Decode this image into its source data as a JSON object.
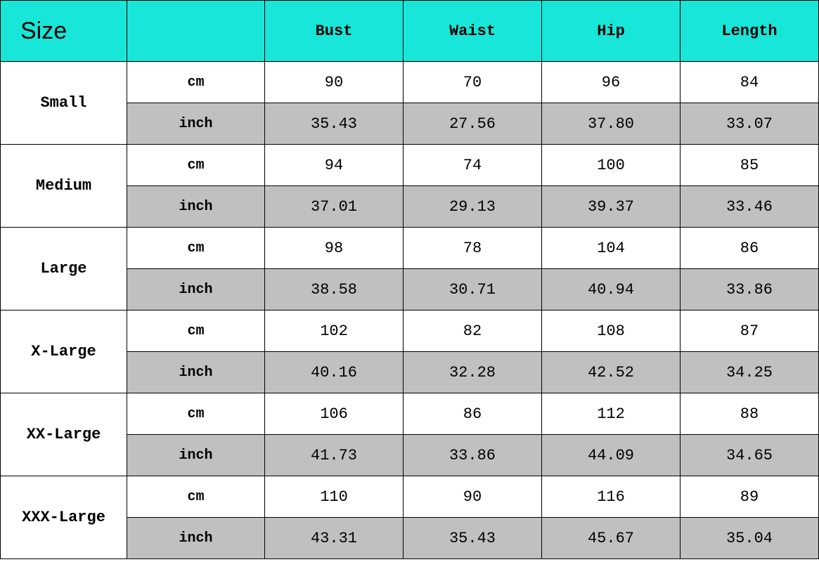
{
  "table": {
    "type": "table",
    "header_bg_color": "#18e6d9",
    "inch_row_bg_color": "#c0c0c0",
    "cm_row_bg_color": "#ffffff",
    "border_color": "#000000",
    "text_color": "#000000",
    "font_family": "Courier New",
    "size_header_label": "Size",
    "size_header_fontsize": 34,
    "column_header_fontsize": 22,
    "body_fontsize": 22,
    "unit_fontsize": 20,
    "columns": [
      "Bust",
      "Waist",
      "Hip",
      "Length"
    ],
    "unit_labels": {
      "cm": "cm",
      "inch": "inch"
    },
    "sizes": [
      {
        "name": "Small",
        "cm": {
          "bust": "90",
          "waist": "70",
          "hip": "96",
          "length": "84"
        },
        "inch": {
          "bust": "35.43",
          "waist": "27.56",
          "hip": "37.80",
          "length": "33.07"
        }
      },
      {
        "name": "Medium",
        "cm": {
          "bust": "94",
          "waist": "74",
          "hip": "100",
          "length": "85"
        },
        "inch": {
          "bust": "37.01",
          "waist": "29.13",
          "hip": "39.37",
          "length": "33.46"
        }
      },
      {
        "name": "Large",
        "cm": {
          "bust": "98",
          "waist": "78",
          "hip": "104",
          "length": "86"
        },
        "inch": {
          "bust": "38.58",
          "waist": "30.71",
          "hip": "40.94",
          "length": "33.86"
        }
      },
      {
        "name": "X-Large",
        "cm": {
          "bust": "102",
          "waist": "82",
          "hip": "108",
          "length": "87"
        },
        "inch": {
          "bust": "40.16",
          "waist": "32.28",
          "hip": "42.52",
          "length": "34.25"
        }
      },
      {
        "name": "XX-Large",
        "cm": {
          "bust": "106",
          "waist": "86",
          "hip": "112",
          "length": "88"
        },
        "inch": {
          "bust": "41.73",
          "waist": "33.86",
          "hip": "44.09",
          "length": "34.65"
        }
      },
      {
        "name": "XXX-Large",
        "cm": {
          "bust": "110",
          "waist": "90",
          "hip": "116",
          "length": "89"
        },
        "inch": {
          "bust": "43.31",
          "waist": "35.43",
          "hip": "45.67",
          "length": "35.04"
        }
      }
    ]
  }
}
